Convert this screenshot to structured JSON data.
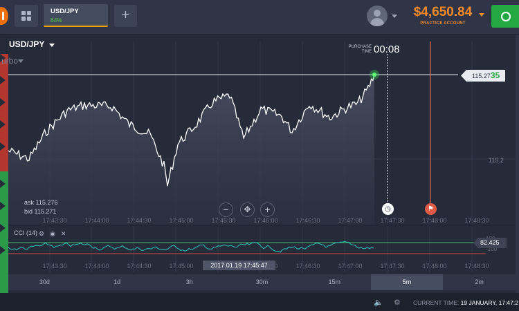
{
  "topbar": {
    "asset_tab": {
      "name": "USD/JPY",
      "payout": "84%"
    },
    "add_label": "+",
    "balance": {
      "amount": "$4,650.84",
      "account": "PRACTICE ACCOUNT"
    },
    "colors": {
      "balance": "#f58a2a",
      "deposit": "#24a842",
      "tab_accent": "#f0a30a"
    }
  },
  "chart": {
    "pair": "USD/JPY",
    "mode": "urbo",
    "purchase_label": "PURCHASE TIME",
    "timer": "00:08",
    "price_tag": {
      "main": "115.27",
      "highlight": "35"
    },
    "level_label": "115.2",
    "ask": "ask 115.276",
    "bid": "bid 115.271",
    "zoom": {
      "out": "−",
      "move": "✥",
      "in": "+"
    },
    "time_ticks": [
      "17:43:30",
      "17:44:00",
      "17:44:30",
      "17:45:00",
      "17:45:30",
      "17:46:00",
      "17:46:30",
      "17:47:00",
      "17:47:30",
      "17:48:00",
      "17:48:30"
    ],
    "line_color": "#ffffff",
    "purchase_line_color": "#e05a45"
  },
  "cci": {
    "label": "CCI (14)",
    "value": "82.425",
    "upper": "100",
    "lower": "-100",
    "current_time": "2017.01.19 17:45:47",
    "time_ticks": [
      "17:43:30",
      "17:44:00",
      "17:44:30",
      "17:45:00",
      "17:45:30",
      "17:46:00",
      "17:46:30",
      "17:47:00",
      "17:47:30",
      "17:48:00",
      "17:48:30"
    ],
    "line_color": "#2cc5c0",
    "upper_color": "#3fbf62",
    "lower_color": "#c94a3c"
  },
  "timeframes": [
    {
      "label": "30d",
      "active": false
    },
    {
      "label": "1d",
      "active": false
    },
    {
      "label": "3h",
      "active": false
    },
    {
      "label": "30m",
      "active": false
    },
    {
      "label": "15m",
      "active": false
    },
    {
      "label": "5m",
      "active": true
    },
    {
      "label": "2m",
      "active": false
    }
  ],
  "status": {
    "current_time_label": "CURRENT TIME:",
    "current_time_value": "19 JANUARY, 17:47:2"
  }
}
